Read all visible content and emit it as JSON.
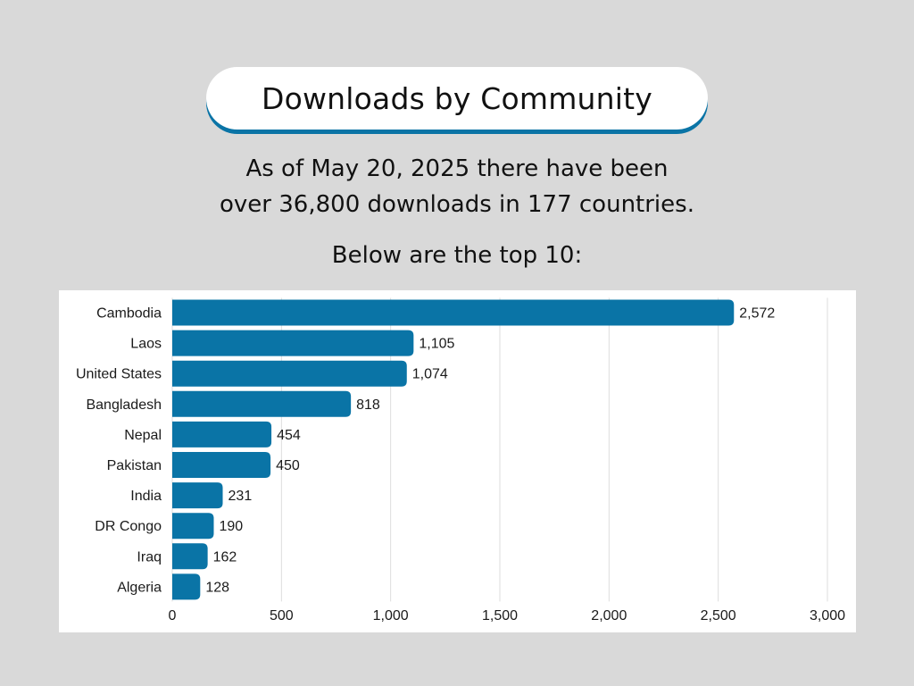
{
  "header": {
    "title": "Downloads by Community"
  },
  "intro": {
    "line1": "As of May 20, 2025 there have been",
    "line2": "over 36,800 downloads in 177 countries.",
    "line3": "Below are the top 10:"
  },
  "colors": {
    "bar": "#0a74a6",
    "accent": "#0a74a6",
    "background": "#d9d9d9",
    "panel": "#ffffff",
    "grid": "#dddddd"
  },
  "chart_data": {
    "type": "bar",
    "orientation": "horizontal",
    "categories": [
      "Cambodia",
      "Laos",
      "United States",
      "Bangladesh",
      "Nepal",
      "Pakistan",
      "India",
      "DR Congo",
      "Iraq",
      "Algeria"
    ],
    "values": [
      2572,
      1105,
      1074,
      818,
      454,
      450,
      231,
      190,
      162,
      128
    ],
    "value_labels": [
      "2,572",
      "1,105",
      "1,074",
      "818",
      "454",
      "450",
      "231",
      "190",
      "162",
      "128"
    ],
    "xlim": [
      0,
      3000
    ],
    "x_ticks": [
      0,
      500,
      1000,
      1500,
      2000,
      2500,
      3000
    ],
    "x_tick_labels": [
      "0",
      "500",
      "1,000",
      "1,500",
      "2,000",
      "2,500",
      "3,000"
    ],
    "grid": true,
    "xlabel": "",
    "ylabel": ""
  }
}
